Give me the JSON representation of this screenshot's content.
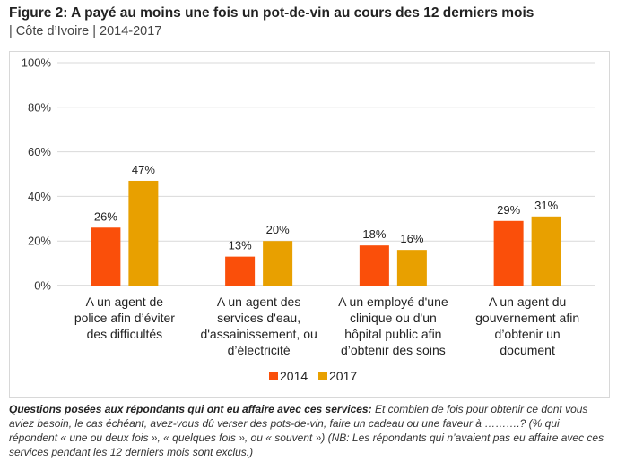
{
  "title": "Figure 2: A payé au moins une fois un pot-de-vin au cours des 12 derniers mois",
  "subtitle": "| Côte d’Ivoire | 2014-2017",
  "chart_data": {
    "type": "bar",
    "categories": [
      [
        "A un agent de",
        "police afin d’éviter",
        "des difficultés"
      ],
      [
        "A un agent des",
        "services d'eau,",
        "d'assainissement, ou",
        "d’électricité"
      ],
      [
        "A un employé d'une",
        "clinique ou d'un",
        "hôpital public afin",
        "d’obtenir des soins"
      ],
      [
        "A un agent du",
        "gouvernement afin",
        "d’obtenir un",
        "document"
      ]
    ],
    "series": [
      {
        "name": "2014",
        "color": "#FA4F0A",
        "values": [
          26,
          13,
          18,
          29
        ],
        "labels": [
          "26%",
          "13%",
          "18%",
          "29%"
        ]
      },
      {
        "name": "2017",
        "color": "#E8A000",
        "values": [
          47,
          20,
          16,
          31
        ],
        "labels": [
          "47%",
          "20%",
          "16%",
          "31%"
        ]
      }
    ],
    "ylim": [
      0,
      100
    ],
    "yticks": [
      "0%",
      "20%",
      "40%",
      "60%",
      "80%",
      "100%"
    ],
    "grid": true,
    "legend": "bottom"
  },
  "note": {
    "bold": "Questions posées aux répondants qui ont eu affaire avec ces services:",
    "text": " Et combien de fois pour obtenir ce dont vous aviez besoin, le cas échéant, avez-vous dû verser des pots-de-vin, faire un cadeau ou une faveur à ……….? (% qui répondent « une ou deux fois », « quelques fois », ou « souvent ») (NB: Les répondants qui n’avaient pas eu affaire avec ces services pendant les 12 derniers mois sont exclus.)"
  }
}
